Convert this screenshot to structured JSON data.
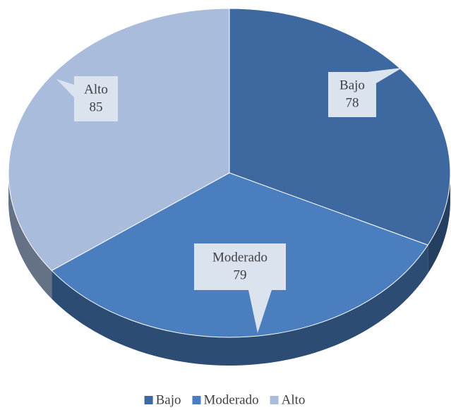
{
  "chart_data": {
    "type": "pie",
    "categories": [
      "Bajo",
      "Moderado",
      "Alto"
    ],
    "values": [
      78,
      79,
      85
    ],
    "colors": [
      "#3e69a0",
      "#4a7ebf",
      "#a9bcdc"
    ],
    "legend": "bottom"
  }
}
